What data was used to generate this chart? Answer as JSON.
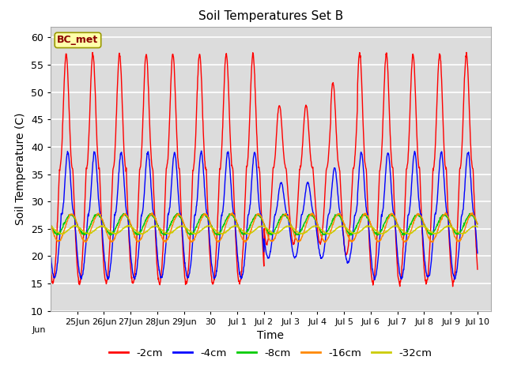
{
  "title": "Soil Temperatures Set B",
  "xlabel": "Time",
  "ylabel": "Soil Temperature (C)",
  "ylim": [
    10,
    62
  ],
  "yticks": [
    10,
    15,
    20,
    25,
    30,
    35,
    40,
    45,
    50,
    55,
    60
  ],
  "annotation": "BC_met",
  "bg_color": "#dcdcdc",
  "colors": {
    "-2cm": "#ff0000",
    "-4cm": "#0000ff",
    "-8cm": "#00cc00",
    "-16cm": "#ff8800",
    "-32cm": "#cccc00"
  },
  "legend_labels": [
    "-2cm",
    "-4cm",
    "-8cm",
    "-16cm",
    "-32cm"
  ],
  "tick_labels": [
    "Jun 25",
    "Jun 26",
    "Jun 27",
    "Jun 28",
    "Jun 29",
    "Jun 30",
    "Jul 1",
    "Jul 2",
    "Jul 3",
    "Jul 4",
    "Jul 5",
    "Jul 6",
    "Jul 7",
    "Jul 8",
    "Jul 9",
    "Jul 10"
  ],
  "tick_positions": [
    1,
    2,
    3,
    4,
    5,
    6,
    7,
    8,
    9,
    10,
    11,
    12,
    13,
    14,
    15,
    16
  ]
}
